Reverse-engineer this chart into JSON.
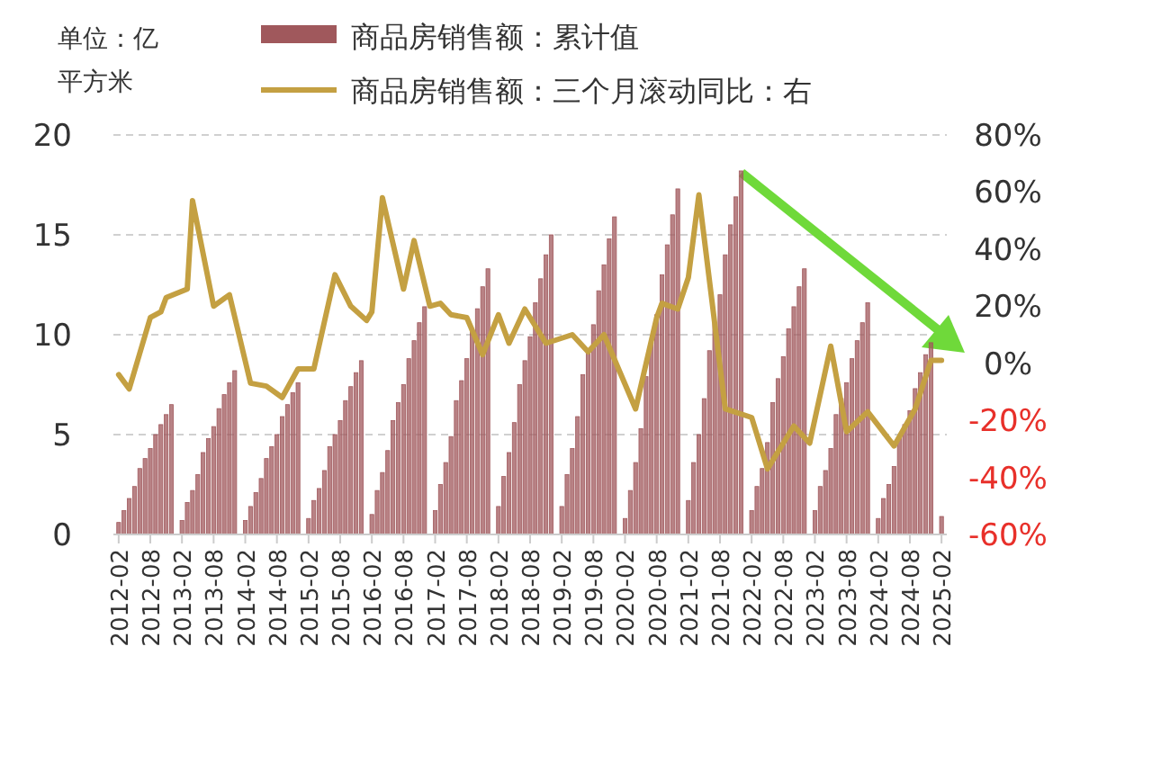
{
  "chart_data": {
    "type": "bar",
    "ylabel": "单位：亿平方米",
    "xlim": [
      "2012-01",
      "2025-03"
    ],
    "xticks": [
      "2012-02",
      "2012-08",
      "2013-02",
      "2013-08",
      "2014-02",
      "2014-08",
      "2015-02",
      "2015-08",
      "2016-02",
      "2016-08",
      "2017-02",
      "2017-08",
      "2018-02",
      "2018-08",
      "2019-02",
      "2019-08",
      "2020-02",
      "2020-08",
      "2021-02",
      "2021-08",
      "2022-02",
      "2022-08",
      "2023-02",
      "2023-08",
      "2024-02",
      "2024-08",
      "2025-02"
    ],
    "ylim": [
      0,
      20
    ],
    "yticks": [
      0,
      5,
      10,
      15,
      20
    ],
    "y2lim": [
      -60,
      80
    ],
    "y2ticks": [
      {
        "value": 80,
        "label": "80%"
      },
      {
        "value": 60,
        "label": "60%"
      },
      {
        "value": 40,
        "label": "40%"
      },
      {
        "value": 20,
        "label": "20%"
      },
      {
        "value": 0,
        "label": "0%"
      },
      {
        "value": -20,
        "label": "-20%"
      },
      {
        "value": -40,
        "label": "-40%"
      },
      {
        "value": -60,
        "label": "-60%"
      }
    ],
    "grid": "y",
    "legend": "top",
    "series": [
      {
        "name": "商品房销售额：累计值",
        "color": "#a0585c",
        "x": [
          "2012-02",
          "2012-03",
          "2012-04",
          "2012-05",
          "2012-06",
          "2012-07",
          "2012-08",
          "2012-09",
          "2012-10",
          "2012-11",
          "2012-12",
          "2013-02",
          "2013-03",
          "2013-04",
          "2013-05",
          "2013-06",
          "2013-07",
          "2013-08",
          "2013-09",
          "2013-10",
          "2013-11",
          "2013-12",
          "2014-02",
          "2014-03",
          "2014-04",
          "2014-05",
          "2014-06",
          "2014-07",
          "2014-08",
          "2014-09",
          "2014-10",
          "2014-11",
          "2014-12",
          "2015-02",
          "2015-03",
          "2015-04",
          "2015-05",
          "2015-06",
          "2015-07",
          "2015-08",
          "2015-09",
          "2015-10",
          "2015-11",
          "2015-12",
          "2016-02",
          "2016-03",
          "2016-04",
          "2016-05",
          "2016-06",
          "2016-07",
          "2016-08",
          "2016-09",
          "2016-10",
          "2016-11",
          "2016-12",
          "2017-02",
          "2017-03",
          "2017-04",
          "2017-05",
          "2017-06",
          "2017-07",
          "2017-08",
          "2017-09",
          "2017-10",
          "2017-11",
          "2017-12",
          "2018-02",
          "2018-03",
          "2018-04",
          "2018-05",
          "2018-06",
          "2018-07",
          "2018-08",
          "2018-09",
          "2018-10",
          "2018-11",
          "2018-12",
          "2019-02",
          "2019-03",
          "2019-04",
          "2019-05",
          "2019-06",
          "2019-07",
          "2019-08",
          "2019-09",
          "2019-10",
          "2019-11",
          "2019-12",
          "2020-02",
          "2020-03",
          "2020-04",
          "2020-05",
          "2020-06",
          "2020-07",
          "2020-08",
          "2020-09",
          "2020-10",
          "2020-11",
          "2020-12",
          "2021-02",
          "2021-03",
          "2021-04",
          "2021-05",
          "2021-06",
          "2021-07",
          "2021-08",
          "2021-09",
          "2021-10",
          "2021-11",
          "2021-12",
          "2022-02",
          "2022-03",
          "2022-04",
          "2022-05",
          "2022-06",
          "2022-07",
          "2022-08",
          "2022-09",
          "2022-10",
          "2022-11",
          "2022-12",
          "2023-02",
          "2023-03",
          "2023-04",
          "2023-05",
          "2023-06",
          "2023-07",
          "2023-08",
          "2023-09",
          "2023-10",
          "2023-11",
          "2023-12",
          "2024-02",
          "2024-03",
          "2024-04",
          "2024-05",
          "2024-06",
          "2024-07",
          "2024-08",
          "2024-09",
          "2024-10",
          "2024-11",
          "2024-12",
          "2025-02"
        ],
        "values": [
          0.6,
          1.2,
          1.8,
          2.4,
          3.3,
          3.8,
          4.3,
          5.0,
          5.5,
          6.0,
          6.5,
          0.7,
          1.6,
          2.2,
          3.0,
          4.1,
          4.8,
          5.4,
          6.3,
          7.0,
          7.6,
          8.2,
          0.7,
          1.4,
          2.1,
          2.8,
          3.8,
          4.4,
          5.0,
          5.9,
          6.5,
          7.1,
          7.6,
          0.8,
          1.7,
          2.3,
          3.2,
          4.4,
          5.0,
          5.7,
          6.7,
          7.4,
          8.1,
          8.7,
          1.0,
          2.2,
          3.1,
          4.2,
          5.7,
          6.6,
          7.5,
          8.8,
          9.7,
          10.6,
          11.4,
          1.2,
          2.5,
          3.6,
          4.9,
          6.7,
          7.7,
          8.8,
          10.2,
          11.3,
          12.4,
          13.3,
          1.4,
          2.9,
          4.1,
          5.6,
          7.5,
          8.7,
          9.9,
          11.6,
          12.8,
          14.0,
          15.0,
          1.4,
          3.0,
          4.3,
          5.9,
          8.0,
          9.2,
          10.5,
          12.2,
          13.5,
          14.8,
          15.9,
          0.8,
          2.2,
          3.6,
          5.3,
          7.9,
          9.6,
          11.0,
          13.0,
          14.5,
          16.0,
          17.3,
          1.7,
          3.6,
          5.0,
          6.8,
          9.2,
          10.6,
          12.0,
          14.0,
          15.5,
          16.9,
          18.2,
          1.2,
          2.4,
          3.3,
          4.6,
          6.6,
          7.8,
          8.9,
          10.3,
          11.4,
          12.4,
          13.3,
          1.2,
          2.4,
          3.2,
          4.3,
          6.0,
          6.8,
          7.6,
          8.8,
          9.7,
          10.6,
          11.6,
          0.8,
          1.8,
          2.5,
          3.4,
          4.8,
          5.5,
          6.2,
          7.3,
          8.1,
          9.0,
          9.6,
          0.9
        ]
      },
      {
        "name": "商品房销售额：三个月滚动同比：右",
        "type": "line",
        "axis": "y2",
        "color": "#c4a042",
        "line_style": "solid",
        "marker": "none",
        "x": [
          "2012-02",
          "2012-04",
          "2012-08",
          "2012-10",
          "2012-11",
          "2013-03",
          "2013-04",
          "2013-08",
          "2013-11",
          "2014-03",
          "2014-06",
          "2014-09",
          "2014-12",
          "2015-03",
          "2015-07",
          "2015-10",
          "2016-01",
          "2016-02",
          "2016-04",
          "2016-08",
          "2016-10",
          "2017-01",
          "2017-03",
          "2017-05",
          "2017-08",
          "2017-11",
          "2018-02",
          "2018-04",
          "2018-07",
          "2018-11",
          "2019-04",
          "2019-07",
          "2019-10",
          "2020-04",
          "2020-08",
          "2020-09",
          "2020-12",
          "2021-02",
          "2021-04",
          "2021-09",
          "2022-02",
          "2022-05",
          "2022-10",
          "2023-01",
          "2023-05",
          "2023-08",
          "2023-12",
          "2024-05",
          "2024-09",
          "2024-12",
          "2025-02"
        ],
        "values": [
          -4,
          -9,
          16,
          18,
          23,
          26,
          57,
          20,
          24,
          -7,
          -8,
          -12,
          -2,
          -2,
          31,
          20,
          15,
          18,
          58,
          26,
          43,
          20,
          21,
          17,
          16,
          3,
          17,
          7,
          19,
          7,
          10,
          4,
          10,
          -16,
          16,
          21,
          19,
          30,
          59,
          -16,
          -19,
          -37,
          -22,
          -28,
          6,
          -24,
          -17,
          -29,
          -16,
          1,
          1
        ]
      }
    ]
  }
}
